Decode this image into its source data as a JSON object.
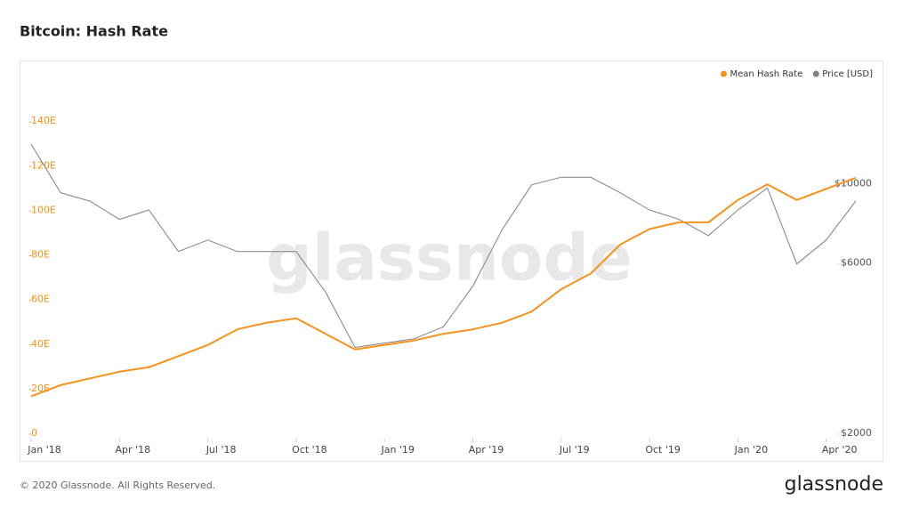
{
  "chart_data": {
    "type": "line",
    "title": "Bitcoin: Hash Rate",
    "watermark": "glassnode",
    "x": [
      "2018-01",
      "2018-02",
      "2018-03",
      "2018-04",
      "2018-05",
      "2018-06",
      "2018-07",
      "2018-08",
      "2018-09",
      "2018-10",
      "2018-11",
      "2018-12",
      "2019-01",
      "2019-02",
      "2019-03",
      "2019-04",
      "2019-05",
      "2019-06",
      "2019-07",
      "2019-08",
      "2019-09",
      "2019-10",
      "2019-11",
      "2019-12",
      "2020-01",
      "2020-02",
      "2020-03",
      "2020-04",
      "2020-05"
    ],
    "xticks": [
      {
        "value": "2018-01",
        "label": "Jan '18"
      },
      {
        "value": "2018-04",
        "label": "Apr '18"
      },
      {
        "value": "2018-07",
        "label": "Jul '18"
      },
      {
        "value": "2018-10",
        "label": "Oct '18"
      },
      {
        "value": "2019-01",
        "label": "Jan '19"
      },
      {
        "value": "2019-04",
        "label": "Apr '19"
      },
      {
        "value": "2019-07",
        "label": "Jul '19"
      },
      {
        "value": "2019-10",
        "label": "Oct '19"
      },
      {
        "value": "2020-01",
        "label": "Jan '20"
      },
      {
        "value": "2020-04",
        "label": "Apr '20"
      }
    ],
    "series": [
      {
        "name": "Mean Hash Rate",
        "color": "#f7931a",
        "axis": "y",
        "values": [
          17,
          22,
          25,
          28,
          30,
          35,
          40,
          47,
          50,
          52,
          45,
          38,
          40,
          42,
          45,
          47,
          50,
          55,
          65,
          72,
          85,
          92,
          95,
          95,
          105,
          112,
          105,
          110,
          115
        ]
      },
      {
        "name": "Price [USD]",
        "color": "#808080",
        "axis": "y2",
        "values": [
          13000,
          9500,
          9000,
          8000,
          8500,
          6500,
          7000,
          6500,
          6500,
          6500,
          5000,
          3500,
          3600,
          3700,
          4000,
          5200,
          7500,
          10000,
          10500,
          10500,
          9500,
          8500,
          8000,
          7200,
          8500,
          9800,
          6000,
          7000,
          9000
        ]
      }
    ],
    "ylim": [
      0,
      160
    ],
    "yticks": [
      0,
      {
        "value": 20,
        "label": "20E"
      },
      {
        "value": 40,
        "label": "40E"
      },
      {
        "value": 60,
        "label": "60E"
      },
      {
        "value": 80,
        "label": "80E"
      },
      {
        "value": 100,
        "label": "100E"
      },
      {
        "value": 120,
        "label": "120E"
      },
      {
        "value": 140,
        "label": "140E"
      }
    ],
    "y2lim": [
      2000,
      20000
    ],
    "y2log": true,
    "y2ticks": [
      {
        "value": 2000,
        "label": "$2000"
      },
      {
        "value": 6000,
        "label": "$6000"
      },
      {
        "value": 10000,
        "label": "$10000"
      }
    ],
    "legend": "top-right"
  },
  "footer": {
    "copyright": "© 2020 Glassnode. All Rights Reserved.",
    "logo": "glassnode"
  }
}
